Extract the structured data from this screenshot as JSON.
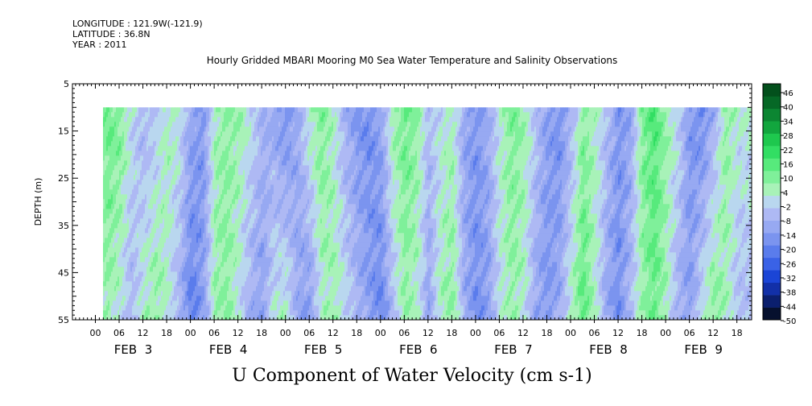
{
  "header": {
    "longitude": "LONGITUDE : 121.9W(-121.9)",
    "latitude": "LATITUDE : 36.8N",
    "year": "YEAR : 2011"
  },
  "chart_data": {
    "type": "heatmap",
    "title": "Hourly Gridded MBARI Mooring M0 Sea Water Temperature and Salinity Observations",
    "xlabel": "U Component of Water Velocity (cm s-1)",
    "ylabel": "DEPTH (m)",
    "ylim": [
      5,
      55
    ],
    "y_inverted": true,
    "data_depth_range": [
      10,
      55
    ],
    "y_ticks": [
      5,
      15,
      25,
      35,
      45,
      55
    ],
    "x_hour_ticks": [
      "00",
      "06",
      "12",
      "18",
      "00",
      "06",
      "12",
      "18",
      "00",
      "06",
      "12",
      "18",
      "00",
      "06",
      "12",
      "18",
      "00",
      "06",
      "12",
      "18",
      "00",
      "06",
      "12",
      "18",
      "00",
      "06",
      "12",
      "18"
    ],
    "x_day_labels": [
      "FEB  3",
      "FEB  4",
      "FEB  5",
      "FEB  6",
      "FEB  7",
      "FEB  8",
      "FEB  9"
    ],
    "colorbar": {
      "labels": [
        "46",
        "40",
        "34",
        "28",
        "22",
        "16",
        "10",
        "4",
        "-2",
        "-8",
        "-14",
        "-20",
        "-26",
        "-32",
        "-38",
        "-44",
        "-50"
      ],
      "range": [
        -50,
        52
      ],
      "palette": [
        "#06102e",
        "#0b1f6e",
        "#1230a8",
        "#1b45d6",
        "#3a62e6",
        "#5a7cec",
        "#7b94ef",
        "#97a9f2",
        "#aeb9f4",
        "#b9d7ef",
        "#a8f2b8",
        "#7ff09a",
        "#57ea7c",
        "#32de63",
        "#1ec84e",
        "#12a63e",
        "#0c8632",
        "#066826",
        "#03501c"
      ]
    },
    "u_velocity_profile": {
      "description_units": "cm s-1",
      "time_hours_from_feb3_00": [
        -3,
        0,
        3,
        6,
        9,
        12,
        15,
        18,
        21,
        24,
        27,
        30,
        33,
        36,
        39,
        42,
        45,
        48,
        51,
        54,
        57,
        60,
        63,
        66,
        69,
        72,
        75,
        78,
        81,
        84,
        87,
        90,
        93,
        96,
        99,
        102,
        105,
        108,
        111,
        114,
        117,
        120,
        123,
        126,
        129,
        132,
        135,
        138,
        141,
        144,
        147,
        150,
        153,
        156,
        159,
        162
      ],
      "u_shallow": [
        -4,
        8,
        14,
        12,
        2,
        -6,
        -2,
        6,
        4,
        -10,
        -14,
        6,
        10,
        8,
        2,
        -6,
        -10,
        -16,
        -8,
        6,
        12,
        4,
        -8,
        -14,
        -16,
        -10,
        8,
        14,
        10,
        -4,
        2,
        6,
        -10,
        -14,
        -8,
        4,
        12,
        8,
        -2,
        -12,
        -16,
        -6,
        10,
        6,
        -4,
        -14,
        -10,
        12,
        18,
        8,
        2,
        -14,
        -18,
        -8,
        10,
        4
      ],
      "u_deep": [
        -6,
        4,
        8,
        2,
        -6,
        6,
        10,
        4,
        -8,
        -20,
        -12,
        8,
        10,
        2,
        -8,
        -12,
        4,
        6,
        -10,
        -14,
        4,
        8,
        2,
        -6,
        -12,
        -18,
        -4,
        8,
        4,
        -10,
        6,
        10,
        -8,
        -16,
        -12,
        2,
        8,
        4,
        -10,
        -14,
        -8,
        6,
        16,
        4,
        -10,
        -16,
        -4,
        8,
        14,
        6,
        -8,
        -12,
        4,
        12,
        6,
        -4
      ]
    }
  }
}
